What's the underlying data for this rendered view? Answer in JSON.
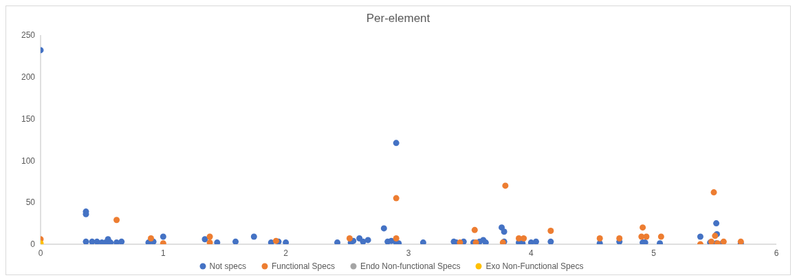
{
  "chart_data": {
    "type": "scatter",
    "title": "Per-element",
    "xlim": [
      0,
      6
    ],
    "xticks": [
      0,
      1,
      2,
      3,
      4,
      5,
      6
    ],
    "ylim": [
      0,
      250
    ],
    "yticks": [
      0,
      50,
      100,
      150,
      200,
      250
    ],
    "grid": false,
    "legend": "bottom",
    "marker": "circle",
    "series": [
      {
        "name": "Not specs",
        "color": "#4472c4",
        "x": [
          0,
          0.37,
          0.37,
          0.37,
          0.42,
          0.46,
          0.5,
          0.53,
          0.55,
          0.57,
          0.62,
          0.66,
          0.88,
          0.92,
          1.0,
          1.34,
          1.44,
          1.59,
          1.74,
          1.88,
          1.94,
          2.0,
          2.42,
          2.53,
          2.55,
          2.6,
          2.63,
          2.67,
          2.8,
          2.83,
          2.86,
          2.9,
          2.9,
          2.92,
          3.12,
          3.37,
          3.39,
          3.45,
          3.53,
          3.58,
          3.61,
          3.63,
          3.76,
          3.78,
          3.78,
          3.9,
          3.93,
          4.0,
          4.04,
          4.16,
          4.56,
          4.72,
          4.91,
          4.93,
          5.05,
          5.38,
          5.46,
          5.515,
          5.51,
          5.51,
          5.56,
          5.71
        ],
        "values": [
          232,
          39,
          36,
          3,
          3,
          3,
          2,
          2,
          6,
          2,
          2,
          3,
          2,
          3,
          9,
          6,
          2,
          3,
          9,
          2,
          3,
          2,
          2,
          2,
          4,
          7,
          3,
          5,
          19,
          3,
          4,
          121,
          2,
          1,
          2,
          3,
          2,
          3,
          2,
          3,
          5,
          2,
          20,
          15,
          3,
          2,
          1,
          2,
          3,
          3,
          1,
          3,
          2,
          2,
          1,
          9,
          2,
          12,
          25,
          1,
          1,
          1
        ]
      },
      {
        "name": "Functional Specs",
        "color": "#ed7d31",
        "x": [
          0,
          0.62,
          0.9,
          1.0,
          1.38,
          1.38,
          1.92,
          2.52,
          2.9,
          2.9,
          3.42,
          3.54,
          3.55,
          3.77,
          3.79,
          3.9,
          3.94,
          4.16,
          4.56,
          4.72,
          4.9,
          4.91,
          4.94,
          5.06,
          5.38,
          5.47,
          5.49,
          5.5,
          5.52,
          5.57,
          5.71
        ],
        "values": [
          6,
          29,
          7,
          1,
          9,
          2,
          4,
          7,
          55,
          7,
          2,
          17,
          2,
          2,
          70,
          7,
          7,
          16,
          7,
          7,
          9,
          20,
          9,
          9,
          0,
          3,
          62,
          10,
          1,
          3,
          3
        ]
      },
      {
        "name": "Endo Non-functional Specs",
        "color": "#a5a5a5"
      },
      {
        "name": "Exo Non-Functional Specs",
        "color": "#ffc000",
        "x": [
          0
        ],
        "values": [
          1
        ]
      }
    ]
  }
}
